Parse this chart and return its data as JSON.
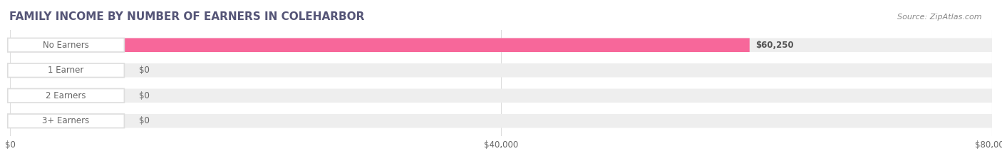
{
  "title": "FAMILY INCOME BY NUMBER OF EARNERS IN COLEHARBOR",
  "source": "Source: ZipAtlas.com",
  "categories": [
    "No Earners",
    "1 Earner",
    "2 Earners",
    "3+ Earners"
  ],
  "values": [
    60250,
    0,
    0,
    0
  ],
  "bar_colors": [
    "#f7679a",
    "#f5c98a",
    "#f5a0a0",
    "#a8c4e0"
  ],
  "track_color": "#eeeeee",
  "background_color": "#ffffff",
  "xlim": [
    0,
    80000
  ],
  "xticks": [
    0,
    40000,
    80000
  ],
  "xtick_labels": [
    "$0",
    "$40,000",
    "$80,000"
  ],
  "value_labels": [
    "$60,250",
    "$0",
    "$0",
    "$0"
  ],
  "title_color": "#555577",
  "source_color": "#888888",
  "label_color": "#666666",
  "bar_height": 0.55,
  "bar_gap": 0.18
}
